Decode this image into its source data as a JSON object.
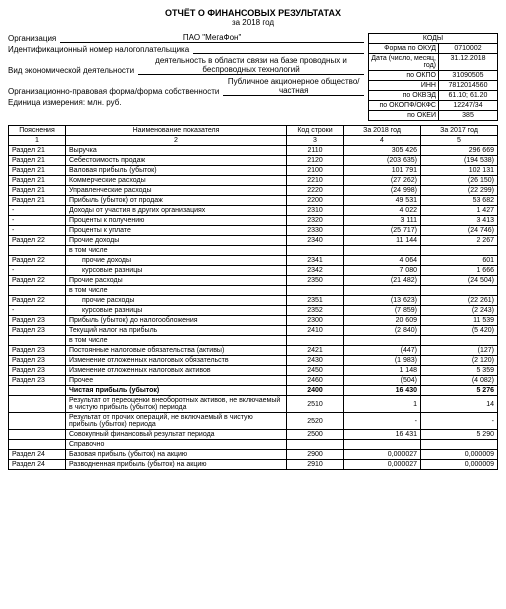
{
  "title": "ОТЧЁТ О ФИНАНСОВЫХ РЕЗУЛЬТАТАХ",
  "period": "за 2018 год",
  "header_labels": {
    "org": "Организация",
    "inn": "Идентификационный номер налогоплательщика",
    "activity": "Вид экономической деятельности",
    "form": "Организационно-правовая форма/форма собственности",
    "unit": "Единица измерения: млн. руб."
  },
  "header_values": {
    "org": "ПАО \"МегаФон\"",
    "activity": "деятельность в области связи на базе проводных и беспроводных технологий",
    "form": "Публичное акционерное общество/частная"
  },
  "codes_head": "КОДЫ",
  "codes": [
    {
      "label": "Форма по ОКУД",
      "val": "0710002"
    },
    {
      "label": "Дата (число, месяц, год)",
      "val": "31.12.2018"
    },
    {
      "label": "по ОКПО",
      "val": "31090505"
    },
    {
      "label": "ИНН",
      "val": "7812014560"
    },
    {
      "label": "по ОКВЭД",
      "val": "61.10; 61.20"
    },
    {
      "label": "по ОКОПФ/ОКФС",
      "val": "12247/34"
    },
    {
      "label": "по ОКЕИ",
      "val": "385"
    }
  ],
  "columns": [
    "Пояснения",
    "Наименование показателя",
    "Код строки",
    "За 2018 год",
    "За 2017 год"
  ],
  "colnums": [
    "1",
    "2",
    "3",
    "4",
    "5"
  ],
  "rows": [
    {
      "p": "Раздел 21",
      "name": "Выручка",
      "code": "2110",
      "v18": "305 426",
      "v17": "296 669"
    },
    {
      "p": "Раздел 21",
      "name": "Себестоимость продаж",
      "code": "2120",
      "v18": "(203 635)",
      "v17": "(194 538)"
    },
    {
      "p": "Раздел 21",
      "name": "Валовая прибыль (убыток)",
      "code": "2100",
      "v18": "101 791",
      "v17": "102 131"
    },
    {
      "p": "Раздел 21",
      "name": "Коммерческие расходы",
      "code": "2210",
      "v18": "(27 262)",
      "v17": "(26 150)"
    },
    {
      "p": "Раздел 21",
      "name": "Управленческие расходы",
      "code": "2220",
      "v18": "(24 998)",
      "v17": "(22 299)"
    },
    {
      "p": "Раздел 21",
      "name": "Прибыль (убыток) от продаж",
      "code": "2200",
      "v18": "49 531",
      "v17": "53 682"
    },
    {
      "p": "-",
      "name": "Доходы от участия в других организациях",
      "code": "2310",
      "v18": "4 022",
      "v17": "1 427"
    },
    {
      "p": "-",
      "name": "Проценты к получению",
      "code": "2320",
      "v18": "3 111",
      "v17": "3 413"
    },
    {
      "p": "-",
      "name": "Проценты к уплате",
      "code": "2330",
      "v18": "(25 717)",
      "v17": "(24 746)"
    },
    {
      "p": "Раздел 22",
      "name": "Прочие доходы",
      "code": "2340",
      "v18": "11 144",
      "v17": "2 267"
    },
    {
      "p": "",
      "name": "в том числе",
      "code": "",
      "v18": "",
      "v17": ""
    },
    {
      "p": "Раздел 22",
      "name": "прочие доходы",
      "indent": true,
      "code": "2341",
      "v18": "4 064",
      "v17": "601"
    },
    {
      "p": "-",
      "name": "курсовые разницы",
      "indent": true,
      "code": "2342",
      "v18": "7 080",
      "v17": "1 666"
    },
    {
      "p": "Раздел 22",
      "name": "Прочие расходы",
      "code": "2350",
      "v18": "(21 482)",
      "v17": "(24 504)"
    },
    {
      "p": "",
      "name": "в том числе",
      "code": "",
      "v18": "",
      "v17": ""
    },
    {
      "p": "Раздел 22",
      "name": "прочие расходы",
      "indent": true,
      "code": "2351",
      "v18": "(13 623)",
      "v17": "(22 261)"
    },
    {
      "p": "-",
      "name": "курсовые разницы",
      "indent": true,
      "code": "2352",
      "v18": "(7 859)",
      "v17": "(2 243)"
    },
    {
      "p": "Раздел 23",
      "name": "Прибыль (убыток) до налогообложения",
      "code": "2300",
      "v18": "20 609",
      "v17": "11 539"
    },
    {
      "p": "Раздел 23",
      "name": "Текущий налог на прибыль",
      "code": "2410",
      "v18": "(2 840)",
      "v17": "(5 420)"
    },
    {
      "p": "",
      "name": "в том числе",
      "code": "",
      "v18": "",
      "v17": ""
    },
    {
      "p": "Раздел 23",
      "name": "Постоянные налоговые обязательства (активы)",
      "code": "2421",
      "v18": "(447)",
      "v17": "(127)"
    },
    {
      "p": "Раздел 23",
      "name": "Изменение отложенных налоговых обязательств",
      "code": "2430",
      "v18": "(1 983)",
      "v17": "(2 120)"
    },
    {
      "p": "Раздел 23",
      "name": "Изменение отложенных налоговых активов",
      "code": "2450",
      "v18": "1 148",
      "v17": "5 359"
    },
    {
      "p": "Раздел 23",
      "name": "Прочее",
      "code": "2460",
      "v18": "(504)",
      "v17": "(4 082)"
    },
    {
      "p": "",
      "name": "Чистая прибыль (убыток)",
      "code": "2400",
      "v18": "16 430",
      "v17": "5 276",
      "bold": true
    },
    {
      "p": "",
      "name": "Результат от переоценки внеоборотных активов, не включаемый в чистую прибыль (убыток) периода",
      "code": "2510",
      "v18": "1",
      "v17": "14"
    },
    {
      "p": "",
      "name": "Результат от прочих операций, не включаемый в чистую прибыль (убыток) периода",
      "code": "2520",
      "v18": "-",
      "v17": "-"
    },
    {
      "p": "",
      "name": "Совокупный финансовый результат периода",
      "code": "2500",
      "v18": "16 431",
      "v17": "5 290"
    },
    {
      "p": "",
      "name": "Справочно",
      "code": "",
      "v18": "",
      "v17": ""
    },
    {
      "p": "Раздел 24",
      "name": "Базовая прибыль (убыток) на акцию",
      "code": "2900",
      "v18": "0,000027",
      "v17": "0,000009"
    },
    {
      "p": "Раздел 24",
      "name": "Разводненная прибыль (убыток) на акцию",
      "code": "2910",
      "v18": "0,000027",
      "v17": "0,000009"
    }
  ]
}
